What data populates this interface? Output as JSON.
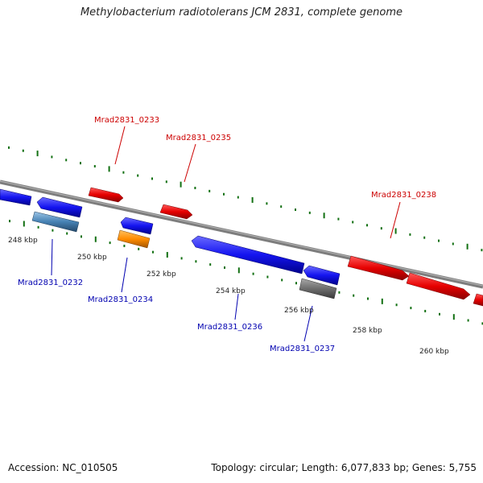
{
  "title": "Methylobacterium radiotolerans JCM 2831, complete genome",
  "footer": {
    "accession": "Accession: NC_010505",
    "stats": "Topology: circular; Length: 6,077,833 bp; Genes: 5,755"
  },
  "colors": {
    "forward": "#e0000f",
    "reverse": "#1010e0",
    "rna": "#4682b4",
    "other": "#ff8c00",
    "pseudo": "#707070",
    "label_forward": "#cc0000",
    "label_reverse": "#0000b0",
    "ticks": "#127012",
    "backbone": "#7a7a7a"
  },
  "scale": {
    "ticks": [
      {
        "label": "248 kbp"
      },
      {
        "label": "250 kbp"
      },
      {
        "label": "252 kbp"
      },
      {
        "label": "254 kbp"
      },
      {
        "label": "256 kbp"
      },
      {
        "label": "258 kbp"
      },
      {
        "label": "260 kbp"
      }
    ]
  },
  "genes": [
    {
      "id": "Mrad2831_0232",
      "strand": "reverse",
      "type": "rna",
      "labeled": true
    },
    {
      "id": "Mrad2831_0233",
      "strand": "forward",
      "type": "cds",
      "labeled": true
    },
    {
      "id": "Mrad2831_0234",
      "strand": "reverse",
      "type": "other",
      "labeled": true
    },
    {
      "id": "Mrad2831_0235",
      "strand": "forward",
      "type": "cds",
      "labeled": true
    },
    {
      "id": "Mrad2831_0236",
      "strand": "reverse",
      "type": "cds",
      "labeled": true
    },
    {
      "id": "Mrad2831_0237",
      "strand": "reverse",
      "type": "pseudo",
      "labeled": true
    },
    {
      "id": "Mrad2831_0238",
      "strand": "forward",
      "type": "cds",
      "labeled": true
    }
  ]
}
